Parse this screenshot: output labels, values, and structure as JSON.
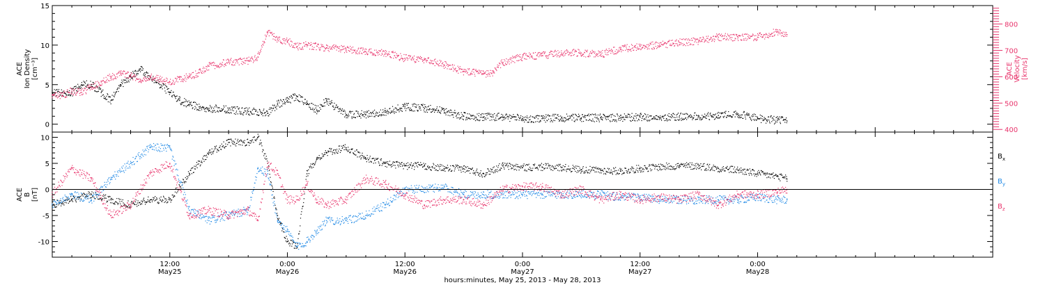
{
  "chart_data": {
    "type": "scatter",
    "xlabel": "hours:minutes, May 25, 2013 - May 28, 2013",
    "x_range_hours": [
      0,
      96
    ],
    "x_ticks": [
      {
        "hour": 12,
        "time": "12:00",
        "date": "May25"
      },
      {
        "hour": 24,
        "time": "0:00",
        "date": "May26"
      },
      {
        "hour": 36,
        "time": "12:00",
        "date": "May26"
      },
      {
        "hour": 48,
        "time": "0:00",
        "date": "May27"
      },
      {
        "hour": 60,
        "time": "12:00",
        "date": "May27"
      },
      {
        "hour": 72,
        "time": "0:00",
        "date": "May28"
      }
    ],
    "panels": [
      {
        "id": "plasma",
        "left_axis": {
          "title_lines": [
            "ACE",
            "Ion Density",
            "[cm⁻³]"
          ],
          "ylim": [
            -1,
            15
          ],
          "ticks": [
            "0",
            "5",
            "10",
            "15"
          ]
        },
        "right_axis": {
          "title_lines": [
            "ACE",
            "Velocity",
            "[km/s]"
          ],
          "ylim": [
            390,
            870
          ],
          "ticks": [
            "400",
            "500",
            "600",
            "700",
            "800"
          ],
          "color": "#e8336b"
        },
        "series": [
          {
            "id": "density",
            "axis": "left",
            "color": "#000000",
            "x": [
              0,
              1,
              2,
              3,
              4,
              5,
              6,
              7,
              8,
              9,
              10,
              11,
              12,
              13,
              14,
              15,
              16,
              18,
              20,
              22,
              23,
              24,
              25,
              26,
              27,
              28,
              30,
              32,
              34,
              36,
              38,
              40,
              42,
              44,
              46,
              48,
              50,
              52,
              54,
              56,
              58,
              60,
              62,
              64,
              66,
              68,
              70,
              72,
              74,
              75
            ],
            "y": [
              4,
              4,
              4,
              5,
              5,
              4,
              3,
              5,
              6,
              7,
              6,
              5,
              4,
              3,
              2.5,
              2.2,
              2,
              1.8,
              1.6,
              1.4,
              2.5,
              3,
              3.5,
              2.5,
              1.8,
              3,
              1.2,
              1.2,
              1.5,
              2.2,
              2,
              1.7,
              1,
              0.9,
              0.9,
              0.7,
              0.7,
              0.8,
              0.8,
              0.8,
              0.8,
              0.9,
              0.8,
              0.9,
              1.0,
              1.1,
              1.3,
              0.7,
              0.5,
              0.4
            ]
          },
          {
            "id": "velocity",
            "axis": "right",
            "color": "#e8336b",
            "x": [
              0,
              1,
              2,
              3,
              4,
              5,
              6,
              7,
              8,
              9,
              10,
              11,
              12,
              13,
              14,
              15,
              16,
              18,
              20,
              21,
              22,
              23,
              24,
              25,
              26,
              28,
              30,
              32,
              34,
              36,
              38,
              40,
              42,
              44,
              45,
              46,
              48,
              50,
              52,
              54,
              56,
              58,
              60,
              62,
              64,
              66,
              68,
              70,
              72,
              74,
              75
            ],
            "y": [
              530,
              530,
              545,
              540,
              560,
              580,
              600,
              610,
              605,
              590,
              600,
              590,
              580,
              590,
              600,
              615,
              640,
              655,
              660,
              675,
              770,
              740,
              735,
              715,
              720,
              710,
              705,
              695,
              690,
              670,
              665,
              645,
              620,
              610,
              615,
              655,
              675,
              680,
              690,
              690,
              685,
              705,
              715,
              720,
              730,
              735,
              750,
              750,
              750,
              770,
              760
            ]
          }
        ]
      },
      {
        "id": "magnetic",
        "left_axis": {
          "title_lines": [
            "ACE",
            "B",
            "[nT]"
          ],
          "ylim": [
            -13,
            11
          ],
          "ticks": [
            "-10",
            "-5",
            "0",
            "5",
            "10"
          ]
        },
        "legend": [
          {
            "label": "B",
            "sub": "x",
            "color": "#000000"
          },
          {
            "label": "B",
            "sub": "y",
            "color": "#1e88e5"
          },
          {
            "label": "B",
            "sub": "z",
            "color": "#e8336b"
          }
        ],
        "series": [
          {
            "id": "Bx",
            "color": "#000000",
            "x": [
              0,
              2,
              4,
              6,
              8,
              10,
              12,
              14,
              16,
              18,
              20,
              21,
              22,
              23,
              24,
              25,
              26,
              27,
              28,
              30,
              32,
              34,
              36,
              38,
              40,
              42,
              44,
              46,
              48,
              50,
              52,
              54,
              56,
              58,
              60,
              62,
              64,
              66,
              68,
              70,
              72,
              74,
              75
            ],
            "y": [
              -3,
              -2,
              -1,
              -2,
              -3,
              -2,
              -2,
              3,
              7,
              9,
              9,
              10,
              5,
              -5,
              -10,
              -11,
              3,
              6,
              7,
              8,
              6,
              5,
              4.5,
              4.5,
              4,
              4,
              3,
              4.5,
              4.2,
              4.3,
              4.2,
              3.8,
              3.6,
              3.5,
              4,
              4.3,
              4.5,
              4.5,
              4,
              3.7,
              3,
              2.5,
              2
            ]
          },
          {
            "id": "By",
            "color": "#1e88e5",
            "x": [
              0,
              2,
              4,
              6,
              8,
              10,
              12,
              14,
              16,
              18,
              20,
              21,
              22,
              23,
              24,
              25,
              26,
              27,
              28,
              30,
              32,
              34,
              36,
              38,
              40,
              42,
              44,
              46,
              48,
              50,
              52,
              54,
              56,
              58,
              60,
              62,
              64,
              66,
              68,
              70,
              72,
              74,
              75
            ],
            "y": [
              -3,
              -1,
              -2,
              2,
              5,
              8,
              8,
              -4,
              -6,
              -5,
              -4,
              4,
              3,
              -6,
              -8,
              -11,
              -10,
              -8,
              -6,
              -6,
              -5,
              -3,
              0,
              0,
              0.5,
              -1,
              -1,
              -1,
              -1,
              -1,
              -1,
              -1,
              -1,
              -1.5,
              -1.5,
              -2,
              -2,
              -2,
              -2,
              -2,
              -1.5,
              -2,
              -2
            ]
          },
          {
            "id": "Bz",
            "color": "#e8336b",
            "x": [
              0,
              2,
              4,
              6,
              8,
              10,
              12,
              14,
              16,
              18,
              20,
              21,
              22,
              23,
              24,
              25,
              26,
              27,
              28,
              30,
              32,
              34,
              36,
              38,
              40,
              42,
              44,
              46,
              48,
              50,
              52,
              54,
              56,
              58,
              60,
              62,
              64,
              66,
              68,
              70,
              72,
              74,
              75
            ],
            "y": [
              -1,
              4,
              2,
              -5,
              -3,
              3,
              5,
              -5,
              -4,
              -5,
              -4,
              -6,
              5,
              3,
              -2,
              -2,
              1,
              -2,
              -3,
              -2,
              2,
              1,
              -1,
              -3,
              -2,
              -2,
              -3,
              0,
              0.5,
              0.5,
              -1,
              0,
              -2,
              -1,
              -2,
              -1.5,
              -2,
              -1,
              -3,
              -1,
              -1,
              -0.5,
              0
            ]
          }
        ]
      }
    ]
  }
}
